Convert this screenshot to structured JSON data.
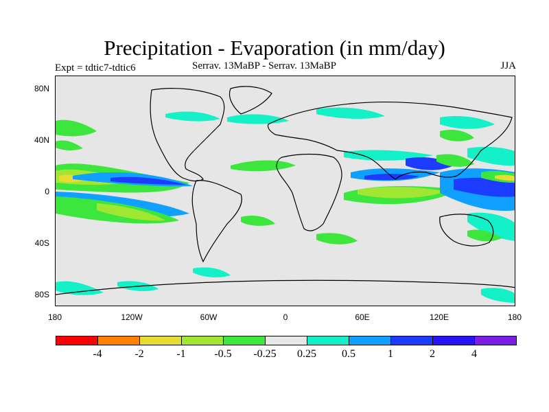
{
  "title": "Precipitation - Evaporation (in mm/day)",
  "subtitle_left": "Expt = tdtic7-tdtic6",
  "subtitle_center": "Serrav.   13MaBP - Serrav.   13MaBP",
  "subtitle_right": "JJA",
  "map": {
    "lat_labels": [
      "80N",
      "40N",
      "0",
      "40S",
      "80S"
    ],
    "lon_labels": [
      "180",
      "120W",
      "60W",
      "0",
      "60E",
      "120E",
      "180"
    ],
    "land_color": "#e6e6e6"
  },
  "colorbar": {
    "colors": [
      "#ff0000",
      "#ff8000",
      "#e6dc32",
      "#a0e632",
      "#3ce63c",
      "#e6e6e6",
      "#14f0c8",
      "#10a0ff",
      "#1e3cff",
      "#2814ff",
      "#7d1ee6"
    ],
    "labels": [
      "-4",
      "-2",
      "-1",
      "-0.5",
      "-0.25",
      "0.25",
      "0.5",
      "1",
      "2",
      "4"
    ]
  }
}
